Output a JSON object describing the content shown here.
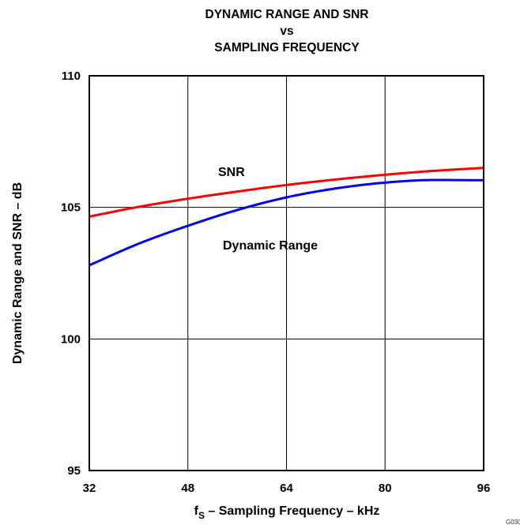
{
  "chart_data": {
    "type": "line",
    "title_lines": [
      "DYNAMIC RANGE AND SNR",
      "vs",
      "SAMPLING FREQUENCY"
    ],
    "xlabel": {
      "main": "f",
      "sub": "S",
      "rest": " – Sampling Frequency – kHz"
    },
    "ylabel": "Dynamic Range and SNR – dB",
    "xlim": [
      32,
      96
    ],
    "ylim": [
      95,
      110
    ],
    "x_ticks": [
      32,
      48,
      64,
      80,
      96
    ],
    "y_ticks": [
      95,
      100,
      105,
      110
    ],
    "x_tick_labels": [
      "32",
      "48",
      "64",
      "80",
      "96"
    ],
    "y_tick_labels": [
      "95",
      "100",
      "105",
      "110"
    ],
    "grid": true,
    "series": [
      {
        "name": "SNR",
        "color": "#ff0000",
        "x": [
          32,
          40,
          48,
          56,
          64,
          72,
          80,
          88,
          96
        ],
        "y": [
          104.65,
          105.02,
          105.33,
          105.6,
          105.85,
          106.06,
          106.24,
          106.39,
          106.5
        ]
      },
      {
        "name": "Dynamic Range",
        "color": "#0000ff",
        "x": [
          32,
          40,
          48,
          56,
          64,
          72,
          80,
          88,
          96
        ],
        "y": [
          102.8,
          103.62,
          104.3,
          104.9,
          105.38,
          105.72,
          105.94,
          106.04,
          106.03
        ]
      }
    ],
    "figure_id": "G030"
  }
}
